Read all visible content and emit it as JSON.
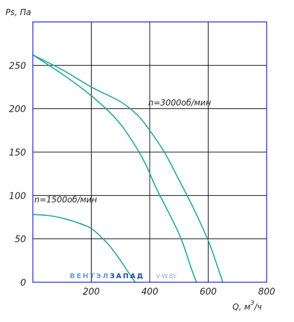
{
  "chart_data": {
    "type": "line",
    "xlabel": "Q, м³/ч",
    "xlabel_base": "Q,  м",
    "xlabel_sup": "3",
    "xlabel_tail": "/ч",
    "ylabel": "Ps, Па",
    "xlim": [
      0,
      800
    ],
    "ylim": [
      0,
      300
    ],
    "xticks": [
      200,
      400,
      600,
      800
    ],
    "yticks": [
      0,
      50,
      100,
      150,
      200,
      250
    ],
    "xtick_labels": [
      "200",
      "400",
      "600",
      "800"
    ],
    "ytick_labels": [
      "0",
      "50",
      "100",
      "150",
      "200",
      "250"
    ],
    "grid": true,
    "series": [
      {
        "name": "n=3000об/мин",
        "x": [
          0,
          100,
          200,
          300,
          360,
          400,
          450,
          500,
          550,
          600,
          630,
          650
        ],
        "y": [
          262,
          245,
          225,
          208,
          192,
          175,
          150,
          118,
          85,
          48,
          20,
          0
        ]
      },
      {
        "x": [
          0,
          100,
          200,
          280,
          330,
          380,
          420,
          450,
          480,
          510,
          540,
          560
        ],
        "y": [
          262,
          240,
          215,
          190,
          168,
          140,
          110,
          90,
          70,
          48,
          18,
          0
        ]
      },
      {
        "name": "n=1500об/мин",
        "x": [
          0,
          50,
          100,
          150,
          200,
          240,
          270,
          300,
          330,
          350
        ],
        "y": [
          78,
          77,
          74,
          69,
          62,
          50,
          39,
          25,
          10,
          0
        ]
      }
    ],
    "annotations": [
      {
        "text": "n=3000об/мин",
        "x": 395,
        "y": 207
      },
      {
        "text": "n=1500об/мин",
        "x": 5,
        "y": 95
      }
    ],
    "watermark": {
      "brand_left": "ВЕНТЭЛ",
      "brand_right": "ЗАПАД",
      "site": "V-W.BY"
    },
    "colors": {
      "curve": "#1aa5a0",
      "frame": "#3a3ad8",
      "grid": "#111111",
      "brand_left": "#6a9bd1",
      "brand_right": "#1e4e8f"
    }
  }
}
